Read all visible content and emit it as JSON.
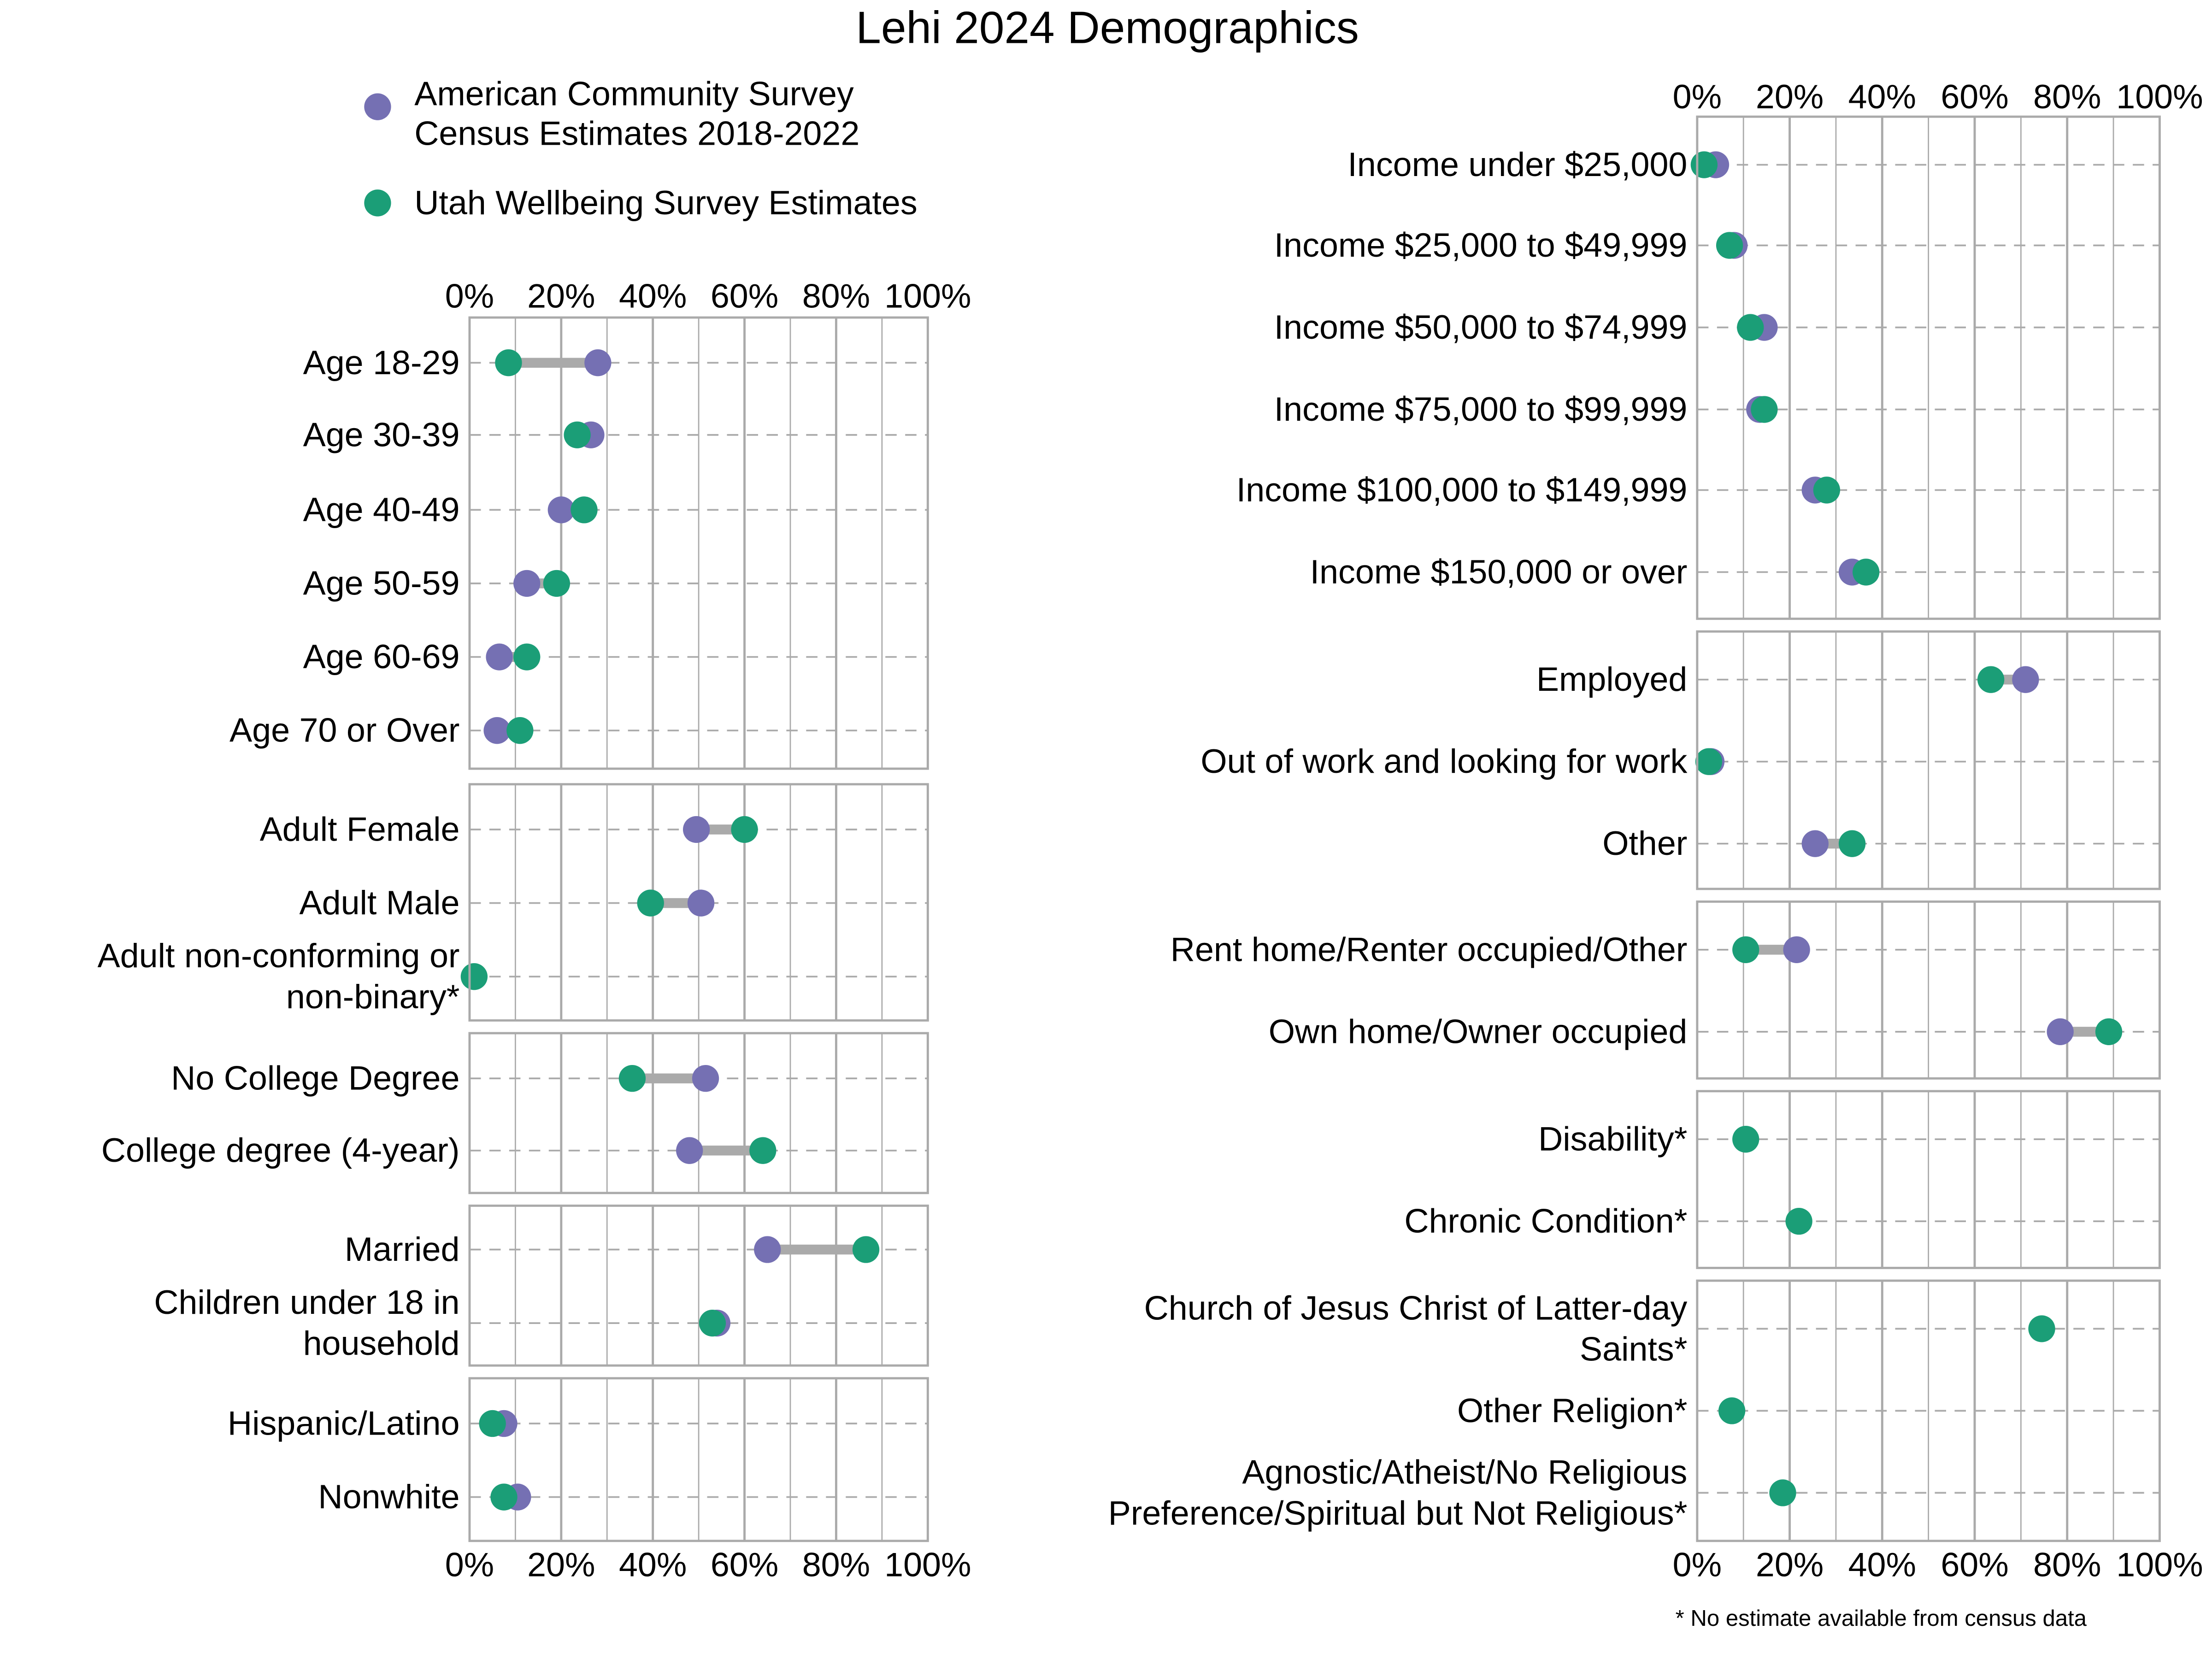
{
  "chart_data": {
    "type": "dumbbell",
    "title": "Lehi 2024 Demographics",
    "footnote": "* No estimate available from census data",
    "xlim": [
      0,
      100
    ],
    "tick_labels": [
      "0%",
      "20%",
      "40%",
      "60%",
      "80%",
      "100%"
    ],
    "grid": true,
    "legend_placement": "top-left",
    "series": [
      {
        "key": "acs",
        "name": "American Community Survey\nCensus Estimates 2018-2022",
        "color": "#7570b3"
      },
      {
        "key": "uws",
        "name": "Utah Wellbeing Survey Estimates",
        "color": "#1b9e77"
      }
    ],
    "connector_color": "#aaaaaa",
    "columns": [
      {
        "panels": [
          {
            "rows": [
              {
                "label": "Age 18-29",
                "acs": 28,
                "uws": 8.5
              },
              {
                "label": "Age 30-39",
                "acs": 26.5,
                "uws": 23.5
              },
              {
                "label": "Age 40-49",
                "acs": 20,
                "uws": 25
              },
              {
                "label": "Age 50-59",
                "acs": 12.5,
                "uws": 19
              },
              {
                "label": "Age 60-69",
                "acs": 6.5,
                "uws": 12.5
              },
              {
                "label": "Age 70 or Over",
                "acs": 6,
                "uws": 11
              }
            ]
          },
          {
            "rows": [
              {
                "label": "Adult Female",
                "acs": 49.5,
                "uws": 60
              },
              {
                "label": "Adult Male",
                "acs": 50.5,
                "uws": 39.5
              },
              {
                "label": "Adult non-conforming or\nnon-binary*",
                "acs": null,
                "uws": 1
              }
            ]
          },
          {
            "rows": [
              {
                "label": "No College Degree",
                "acs": 51.5,
                "uws": 35.5
              },
              {
                "label": "College degree (4-year)",
                "acs": 48,
                "uws": 64
              }
            ]
          },
          {
            "rows": [
              {
                "label": "Married",
                "acs": 65,
                "uws": 86.5
              },
              {
                "label": "Children under 18 in\nhousehold",
                "acs": 54,
                "uws": 53
              }
            ]
          },
          {
            "rows": [
              {
                "label": "Hispanic/Latino",
                "acs": 7.5,
                "uws": 5
              },
              {
                "label": "Nonwhite",
                "acs": 10.5,
                "uws": 7.5
              }
            ]
          }
        ]
      },
      {
        "panels": [
          {
            "rows": [
              {
                "label": "Income under $25,000",
                "acs": 4,
                "uws": 1.5
              },
              {
                "label": "Income $25,000 to $49,999",
                "acs": 8,
                "uws": 7
              },
              {
                "label": "Income $50,000 to $74,999",
                "acs": 14.5,
                "uws": 11.5
              },
              {
                "label": "Income $75,000 to $99,999",
                "acs": 13.5,
                "uws": 14.5
              },
              {
                "label": "Income $100,000 to $149,999",
                "acs": 25.5,
                "uws": 28
              },
              {
                "label": "Income $150,000 or over",
                "acs": 33.5,
                "uws": 36.5
              }
            ]
          },
          {
            "rows": [
              {
                "label": "Employed",
                "acs": 71,
                "uws": 63.5
              },
              {
                "label": "Out of work and looking for work",
                "acs": 3,
                "uws": 2.5
              },
              {
                "label": "Other",
                "acs": 25.5,
                "uws": 33.5
              }
            ]
          },
          {
            "rows": [
              {
                "label": "Rent home/Renter occupied/Other",
                "acs": 21.5,
                "uws": 10.5
              },
              {
                "label": "Own home/Owner occupied",
                "acs": 78.5,
                "uws": 89
              }
            ]
          },
          {
            "rows": [
              {
                "label": "Disability*",
                "acs": null,
                "uws": 10.5
              },
              {
                "label": "Chronic Condition*",
                "acs": null,
                "uws": 22
              }
            ]
          },
          {
            "rows": [
              {
                "label": "Church of Jesus Christ of Latter-day\nSaints*",
                "acs": null,
                "uws": 74.5
              },
              {
                "label": "Other Religion*",
                "acs": null,
                "uws": 7.5
              },
              {
                "label": "Agnostic/Atheist/No Religious\nPreference/Spiritual but Not Religious*",
                "acs": null,
                "uws": 18.5
              }
            ]
          }
        ]
      }
    ]
  }
}
